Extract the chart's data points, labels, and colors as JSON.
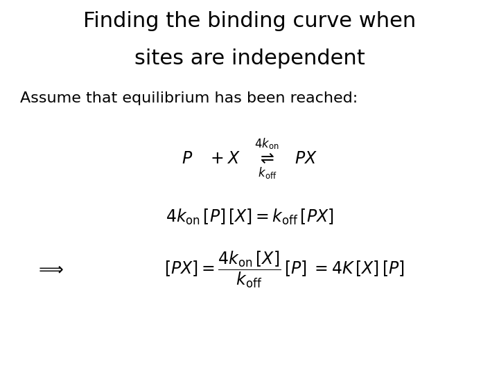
{
  "title_line1": "Finding the binding curve when",
  "title_line2": "sites are independent",
  "subtitle": "Assume that equilibrium has been reached:",
  "bg_color": "#ffffff",
  "text_color": "#000000",
  "title_fontsize": 22,
  "subtitle_fontsize": 16,
  "eq_fontsize": 17,
  "arrow_fontsize": 18
}
